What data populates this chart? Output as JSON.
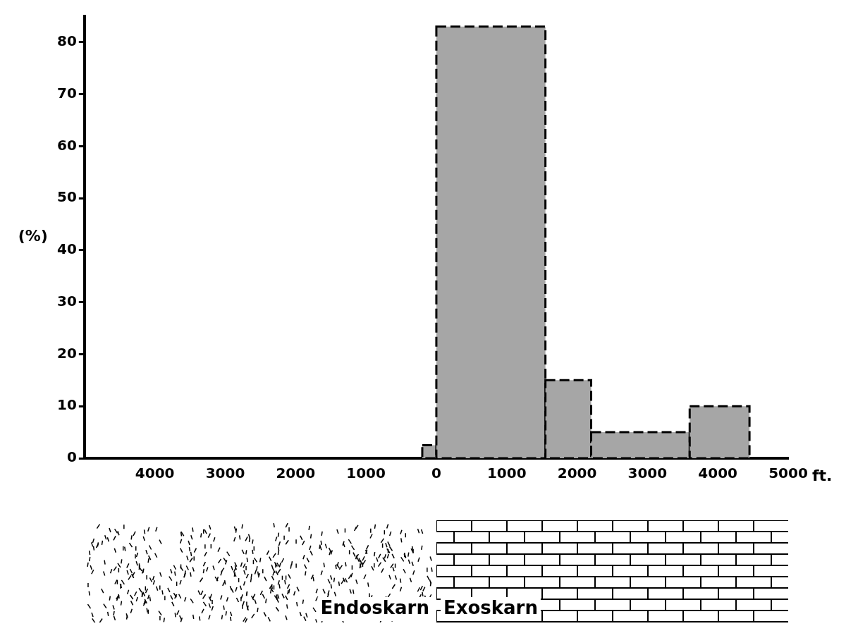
{
  "chart_data": {
    "type": "histogram",
    "ylabel": "(%)",
    "xlabel": "ft.",
    "bins": [
      -200,
      0,
      1550,
      2200,
      3600,
      4450
    ],
    "values": [
      2.5,
      83,
      15,
      5,
      10
    ],
    "color": "#a6a6a6",
    "xlim": [
      -5000,
      5000
    ],
    "xticks": [
      {
        "value": -4000,
        "label": "4000"
      },
      {
        "value": -3000,
        "label": "3000"
      },
      {
        "value": -2000,
        "label": "2000"
      },
      {
        "value": -1000,
        "label": "1000"
      },
      0,
      1000,
      2000,
      3000,
      4000,
      5000
    ],
    "ylim": [
      0,
      85
    ],
    "yticks": [
      0,
      10,
      20,
      30,
      40,
      50,
      60,
      70,
      80
    ],
    "grid": false,
    "annotations": [
      "Endoskarn",
      "Exoskarn"
    ]
  }
}
